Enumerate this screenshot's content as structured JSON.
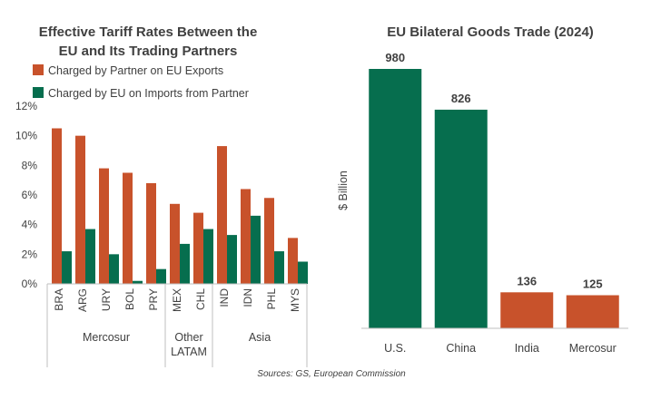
{
  "colors": {
    "orange": "#C8522B",
    "green": "#066E4E",
    "axis": "#BFBFBF",
    "text": "#404040"
  },
  "source": "Sources: GS, European Commission",
  "chart_data": [
    {
      "type": "bar",
      "title_line1": "Effective Tariff Rates Between the",
      "title_line2": "EU and Its Trading Partners",
      "legend_position": "top",
      "categories": [
        "BRA",
        "ARG",
        "URY",
        "BOL",
        "PRY",
        "MEX",
        "CHL",
        "IND",
        "IDN",
        "PHL",
        "MYS"
      ],
      "groups": [
        {
          "label_lines": [
            "Mercosur"
          ],
          "count": 5
        },
        {
          "label_lines": [
            "Other",
            "LATAM"
          ],
          "count": 2
        },
        {
          "label_lines": [
            "Asia"
          ],
          "count": 4
        }
      ],
      "series": [
        {
          "name": "Charged by Partner on EU Exports",
          "color": "#C8522B",
          "values": [
            10.5,
            10.0,
            7.8,
            7.5,
            6.8,
            5.4,
            4.8,
            9.3,
            6.4,
            5.8,
            3.1
          ]
        },
        {
          "name": "Charged by EU on Imports from Partner",
          "color": "#066E4E",
          "values": [
            2.2,
            3.7,
            2.0,
            0.2,
            1.0,
            2.7,
            3.7,
            3.3,
            4.6,
            2.2,
            1.5
          ]
        }
      ],
      "ylim": [
        0,
        12
      ],
      "yticks": [
        "0%",
        "2%",
        "4%",
        "6%",
        "8%",
        "10%",
        "12%"
      ],
      "grid": false
    },
    {
      "type": "bar",
      "title": "EU Bilateral Goods Trade (2024)",
      "ylabel": "$ Billion",
      "categories": [
        "U.S.",
        "China",
        "India",
        "Mercosur"
      ],
      "values": [
        980,
        826,
        136,
        125
      ],
      "value_labels": [
        "980",
        "826",
        "136",
        "125"
      ],
      "colors": [
        "#066E4E",
        "#066E4E",
        "#C8522B",
        "#C8522B"
      ],
      "ylim": [
        0,
        1000
      ],
      "grid": false
    }
  ]
}
